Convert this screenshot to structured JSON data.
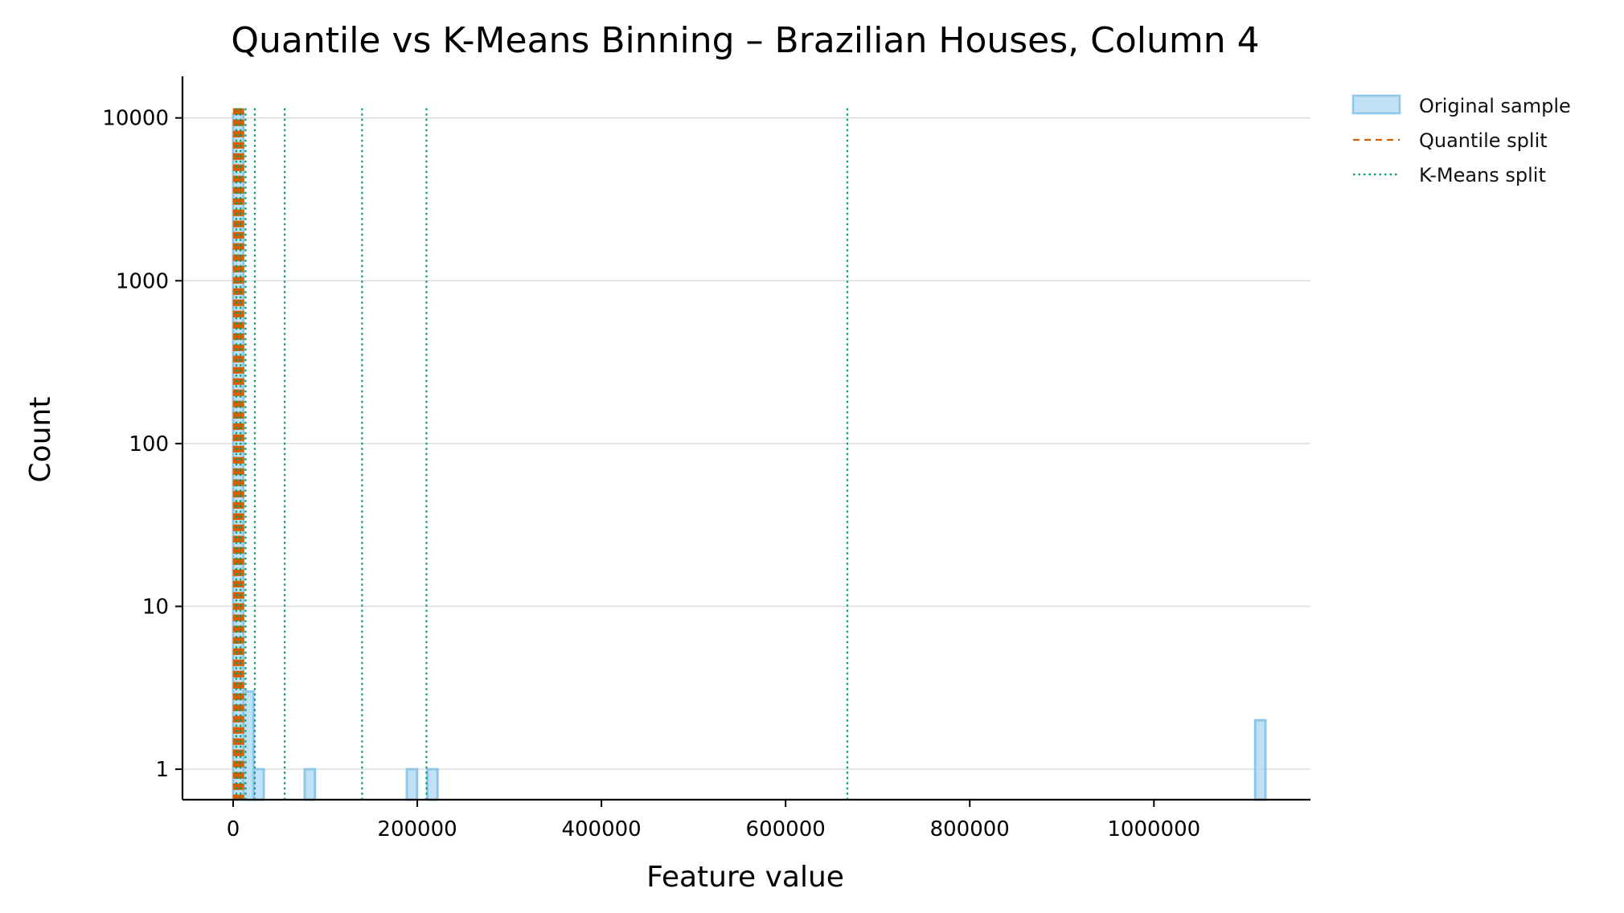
{
  "chart_data": {
    "type": "histogram",
    "title": "Quantile vs K-Means Binning – Brazilian Houses, Column 4",
    "xlabel": "Feature value",
    "ylabel": "Count",
    "xlim": [
      -55000,
      1170000
    ],
    "ylim": [
      0.65,
      18000
    ],
    "yscale": "log",
    "grid": "y",
    "legend_position": "outside-top-right",
    "x_ticks": [
      {
        "value": 0,
        "label": "0"
      },
      {
        "value": 200000,
        "label": "200000"
      },
      {
        "value": 400000,
        "label": "400000"
      },
      {
        "value": 600000,
        "label": "600000"
      },
      {
        "value": 800000,
        "label": "800000"
      },
      {
        "value": 1000000,
        "label": "1000000"
      }
    ],
    "y_ticks": [
      {
        "value": 1,
        "label": "1"
      },
      {
        "value": 10,
        "label": "10"
      },
      {
        "value": 100,
        "label": "100"
      },
      {
        "value": 1000,
        "label": "1000"
      },
      {
        "value": 10000,
        "label": "10000"
      }
    ],
    "histogram": {
      "name": "Original sample",
      "color": "#a6d4f2",
      "edge_color": "#8fc7ea",
      "bins": [
        {
          "x0": 0,
          "x1": 11100,
          "count": 10600
        },
        {
          "x0": 11100,
          "x1": 22200,
          "count": 3
        },
        {
          "x0": 22200,
          "x1": 33300,
          "count": 1
        },
        {
          "x0": 77700,
          "x1": 88800,
          "count": 1
        },
        {
          "x0": 188700,
          "x1": 199800,
          "count": 1
        },
        {
          "x0": 210900,
          "x1": 222000,
          "count": 1
        },
        {
          "x0": 1110000,
          "x1": 1121100,
          "count": 2
        }
      ]
    },
    "quantile_splits": {
      "name": "Quantile split",
      "color": "#d55e00",
      "style": "dashed",
      "values": [
        800,
        1500,
        2200,
        3000,
        3800,
        4600,
        5500,
        6500,
        7600,
        9000,
        11000
      ]
    },
    "kmeans_splits": {
      "name": "K-Means split",
      "color": "#009e73",
      "style": "dotted",
      "values": [
        3500,
        8000,
        13500,
        23500,
        56000,
        140000,
        210000,
        667000
      ]
    },
    "legend": [
      "Original sample",
      "Quantile split",
      "K-Means split"
    ]
  }
}
